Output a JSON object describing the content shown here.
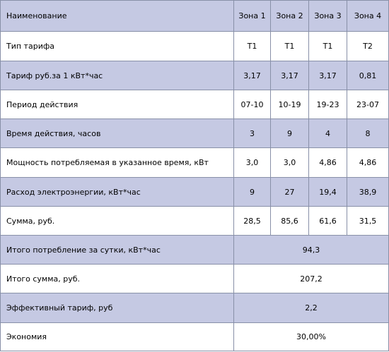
{
  "header": {
    "name": "Наименование",
    "zones": [
      "Зона 1",
      "Зона 2",
      "Зона 3",
      "Зона 4"
    ]
  },
  "rows": [
    {
      "label": "Тип тарифа",
      "values": [
        "Т1",
        "Т1",
        "Т1",
        "Т2"
      ]
    },
    {
      "label": "Тариф руб.за 1 кВт*час",
      "values": [
        "3,17",
        "3,17",
        "3,17",
        "0,81"
      ]
    },
    {
      "label": "Период действия",
      "values": [
        "07-10",
        "10-19",
        "19-23",
        "23-07"
      ]
    },
    {
      "label": "Время действия, часов",
      "values": [
        "3",
        "9",
        "4",
        "8"
      ]
    },
    {
      "label": "Мощность потребляемая в указанное время, кВт",
      "values": [
        "3,0",
        "3,0",
        "4,86",
        "4,86"
      ]
    },
    {
      "label": "Расход электроэнергии, кВт*час",
      "values": [
        "9",
        "27",
        "19,4",
        "38,9"
      ]
    },
    {
      "label": "Сумма, руб.",
      "values": [
        "28,5",
        "85,6",
        "61,6",
        "31,5"
      ]
    }
  ],
  "totals": [
    {
      "label": "Итого потребление за сутки, кВт*час",
      "value": "94,3"
    },
    {
      "label": "Итого сумма, руб.",
      "value": "207,2"
    },
    {
      "label": "Эффективный тариф, руб",
      "value": "2,2"
    },
    {
      "label": "Экономия",
      "value": "30,00%"
    }
  ]
}
